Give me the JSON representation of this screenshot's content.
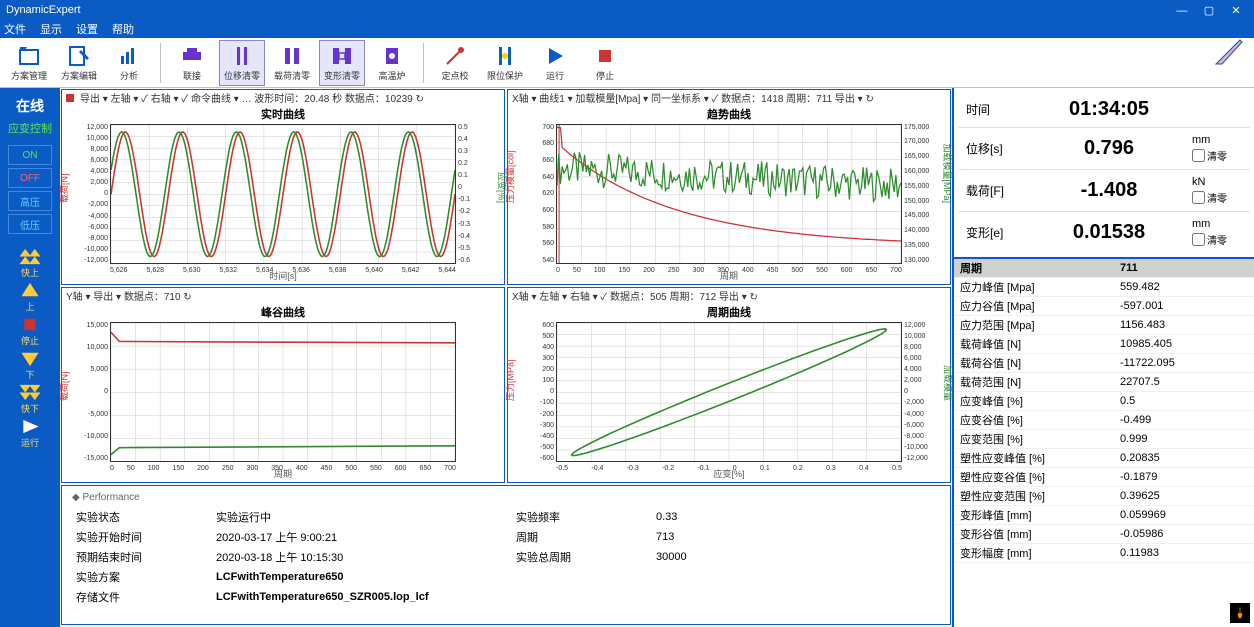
{
  "app_title": "DynamicExpert",
  "menu": [
    "文件",
    "显示",
    "设置",
    "帮助"
  ],
  "toolbar": [
    {
      "name": "scheme-manage",
      "label": "方案管理",
      "color": "#0a5cc4",
      "glyph": "folder"
    },
    {
      "name": "scheme-edit",
      "label": "方案编辑",
      "color": "#0a5cc4",
      "glyph": "edit"
    },
    {
      "name": "analysis",
      "label": "分析",
      "color": "#0a5cc4",
      "glyph": "chart"
    },
    {
      "sep": true
    },
    {
      "name": "connect",
      "label": "联接",
      "color": "#6633cc",
      "glyph": "device"
    },
    {
      "name": "displacement-zero",
      "label": "位移清零",
      "color": "#6633cc",
      "glyph": "bars",
      "selected": true
    },
    {
      "name": "load-zero",
      "label": "载荷清零",
      "color": "#6633cc",
      "glyph": "clamp"
    },
    {
      "name": "deform-zero",
      "label": "变形清零",
      "color": "#6633cc",
      "glyph": "clamp2",
      "selected": true
    },
    {
      "name": "hightemp",
      "label": "高温炉",
      "color": "#6633cc",
      "glyph": "furnace"
    },
    {
      "sep": true
    },
    {
      "name": "point-calib",
      "label": "定点校",
      "color": "#cc3333",
      "glyph": "dot"
    },
    {
      "name": "limit-protect",
      "label": "限位保护",
      "color": "#0a5cc4",
      "glyph": "stop"
    },
    {
      "name": "run",
      "label": "运行",
      "color": "#0a5cc4",
      "glyph": "play"
    },
    {
      "name": "stop",
      "label": "停止",
      "color": "#cc3333",
      "glyph": "square"
    }
  ],
  "sidebar": {
    "title": "在线",
    "mode": "应变控制",
    "buttons": [
      {
        "name": "on",
        "label": "ON",
        "cls": "on"
      },
      {
        "name": "off",
        "label": "OFF",
        "cls": "off"
      },
      {
        "name": "high-pressure",
        "label": "高压",
        "cls": "blue"
      },
      {
        "name": "low-pressure",
        "label": "低压",
        "cls": "blue"
      }
    ],
    "arrows": [
      {
        "name": "fast-up",
        "color": "#ffcc33",
        "dir": "uu",
        "label": "快上"
      },
      {
        "name": "up",
        "color": "#ffcc33",
        "dir": "u",
        "label": "上"
      },
      {
        "name": "stop-move",
        "color": "#cc3333",
        "dir": "sq",
        "label": "停止"
      },
      {
        "name": "down",
        "color": "#ffcc33",
        "dir": "d",
        "label": "下"
      },
      {
        "name": "fast-down",
        "color": "#ffcc33",
        "dir": "dd",
        "label": "快下"
      },
      {
        "name": "play",
        "color": "#ffffff",
        "dir": "play",
        "label": "运行"
      }
    ]
  },
  "charts": {
    "top_left": {
      "bar": "导出  ▾  左轴  ▾  ✓  右轴  ▾  ✓  命令曲线  ▾  …  波形时间：20.48 秒 数据点：10239 ↻",
      "title": "实时曲线",
      "xlabel": "时间[s]",
      "ylabel_left": "载荷[N]",
      "ylabel_right": "应变[%]",
      "xticks": [
        "5,626",
        "5,628",
        "5,630",
        "5,632",
        "5,634",
        "5,636",
        "5,638",
        "5,640",
        "5,642",
        "5,644"
      ],
      "yticks_left": [
        "12,000",
        "10,000",
        "8,000",
        "6,000",
        "4,000",
        "2,000",
        "0",
        "-2,000",
        "-4,000",
        "-6,000",
        "-8,000",
        "-10,000",
        "-12,000"
      ],
      "yticks_right": [
        "0.5",
        "0.4",
        "0.3",
        "0.2",
        "0.1",
        "0",
        "-0.1",
        "-0.2",
        "-0.3",
        "-0.4",
        "-0.5",
        "-0.6"
      ],
      "series_colors": [
        "#cc3333",
        "#2e8b2e"
      ],
      "grid_color": "#cccccc",
      "xlim": [
        5626,
        5644
      ],
      "ylim_left": [
        -12000,
        12000
      ],
      "ylim_right": [
        -0.6,
        0.5
      ],
      "sine_cycles": 6
    },
    "top_right": {
      "bar": "X轴  ▾  曲线1  ▾  加载模量[Mpa]  ▾  同一坐标系  ▾  ✓  数据点：1418  周期：711  导出  ▾  ↻",
      "title": "趋势曲线",
      "xlabel": "周期",
      "ylabel_left": "压力模量[col]",
      "ylabel_right": "加载模量[MPa]",
      "xticks": [
        "0",
        "50",
        "100",
        "150",
        "200",
        "250",
        "300",
        "350",
        "400",
        "450",
        "500",
        "550",
        "600",
        "650",
        "700"
      ],
      "yticks_left": [
        "700",
        "680",
        "660",
        "640",
        "620",
        "600",
        "580",
        "560",
        "540"
      ],
      "yticks_right": [
        "175,000",
        "170,000",
        "165,000",
        "160,000",
        "155,000",
        "150,000",
        "145,000",
        "140,000",
        "135,000",
        "130,000"
      ],
      "series_colors": [
        "#cc3333",
        "#2e8b2e"
      ],
      "grid_color": "#cccccc",
      "xlim": [
        0,
        700
      ],
      "ylim_left": [
        540,
        700
      ],
      "ylim_right": [
        130000,
        175000
      ],
      "red_start": 700,
      "red_end": 560,
      "green_level": 650,
      "green_noise": 20
    },
    "bottom_left": {
      "bar": "Y轴  ▾  导出  ▾  数据点：710 ↻",
      "title": "峰谷曲线",
      "xlabel": "周期",
      "ylabel_left": "载荷[N]",
      "xticks": [
        "0",
        "50",
        "100",
        "150",
        "200",
        "250",
        "300",
        "350",
        "400",
        "450",
        "500",
        "550",
        "600",
        "650",
        "700"
      ],
      "yticks_left": [
        "15,000",
        "10,000",
        "5,000",
        "0",
        "-5,000",
        "-10,000",
        "-15,000"
      ],
      "series_colors": [
        "#cc3333",
        "#2e8b2e"
      ],
      "grid_color": "#cccccc",
      "xlim": [
        0,
        700
      ],
      "ylim_left": [
        -15000,
        15000
      ],
      "red_level": 11000,
      "green_level": -12000
    },
    "bottom_right": {
      "bar": "X轴  ▾  左轴  ▾  右轴  ▾  ✓  数据点：505  周期：712  导出  ▾  ↻",
      "title": "周期曲线",
      "xlabel": "应变[%]",
      "ylabel_left": "压力[MPa]",
      "ylabel_right": "加载模量",
      "xticks": [
        "-0.5",
        "-0.4",
        "-0.3",
        "-0.2",
        "-0.1",
        "0",
        "0.1",
        "0.2",
        "0.3",
        "0.4",
        "0.5"
      ],
      "yticks_left": [
        "600",
        "500",
        "400",
        "300",
        "200",
        "100",
        "0",
        "-100",
        "-200",
        "-300",
        "-400",
        "-500",
        "-600"
      ],
      "yticks_right": [
        "12,000",
        "10,000",
        "8,000",
        "6,000",
        "4,000",
        "2,000",
        "0",
        "-2,000",
        "-4,000",
        "-6,000",
        "-8,000",
        "-10,000",
        "-12,000"
      ],
      "series_colors": [
        "#2e8b2e"
      ],
      "grid_color": "#cccccc",
      "xlim": [
        -0.5,
        0.5
      ],
      "ylim_left": [
        -600,
        600
      ]
    }
  },
  "perf": {
    "header": "◆ Performance",
    "rows": [
      [
        "实验状态",
        "实验运行中",
        "实验频率",
        "0.33"
      ],
      [
        "实验开始时间",
        "2020-03-17 上午 9:00:21",
        "周期",
        "713"
      ],
      [
        "预期结束时间",
        "2020-03-18 上午 10:15:30",
        "实验总周期",
        "30000"
      ],
      [
        "实验方案",
        "LCFwithTemperature650",
        "",
        ""
      ],
      [
        "存储文件",
        "LCFwithTemperature650_SZR005.lop_lcf",
        "",
        ""
      ]
    ]
  },
  "readouts": [
    {
      "label": "时间",
      "value": "01:34:05",
      "unit": "",
      "zero": false
    },
    {
      "label": "位移[s]",
      "value": "0.796",
      "unit": "mm",
      "zero": true
    },
    {
      "label": "载荷[F]",
      "value": "-1.408",
      "unit": "kN",
      "zero": true
    },
    {
      "label": "变形[e]",
      "value": "0.01538",
      "unit": "mm",
      "zero": true
    }
  ],
  "data_table": [
    [
      "周期",
      "711"
    ],
    [
      "应力峰值 [Mpa]",
      "559.482"
    ],
    [
      "应力谷值 [Mpa]",
      "-597.001"
    ],
    [
      "应力范围 [Mpa]",
      "1156.483"
    ],
    [
      "载荷峰值 [N]",
      "10985.405"
    ],
    [
      "载荷谷值 [N]",
      "-11722.095"
    ],
    [
      "载荷范围 [N]",
      "22707.5"
    ],
    [
      "应变峰值 [%]",
      "0.5"
    ],
    [
      "应变谷值 [%]",
      "-0.499"
    ],
    [
      "应变范围 [%]",
      "0.999"
    ],
    [
      "塑性应变峰值 [%]",
      "0.20835"
    ],
    [
      "塑性应变谷值 [%]",
      "-0.1879"
    ],
    [
      "塑性应变范围 [%]",
      "0.39625"
    ],
    [
      "变形峰值 [mm]",
      "0.059969"
    ],
    [
      "变形谷值 [mm]",
      "-0.05986"
    ],
    [
      "变形幅度 [mm]",
      "0.11983"
    ]
  ]
}
